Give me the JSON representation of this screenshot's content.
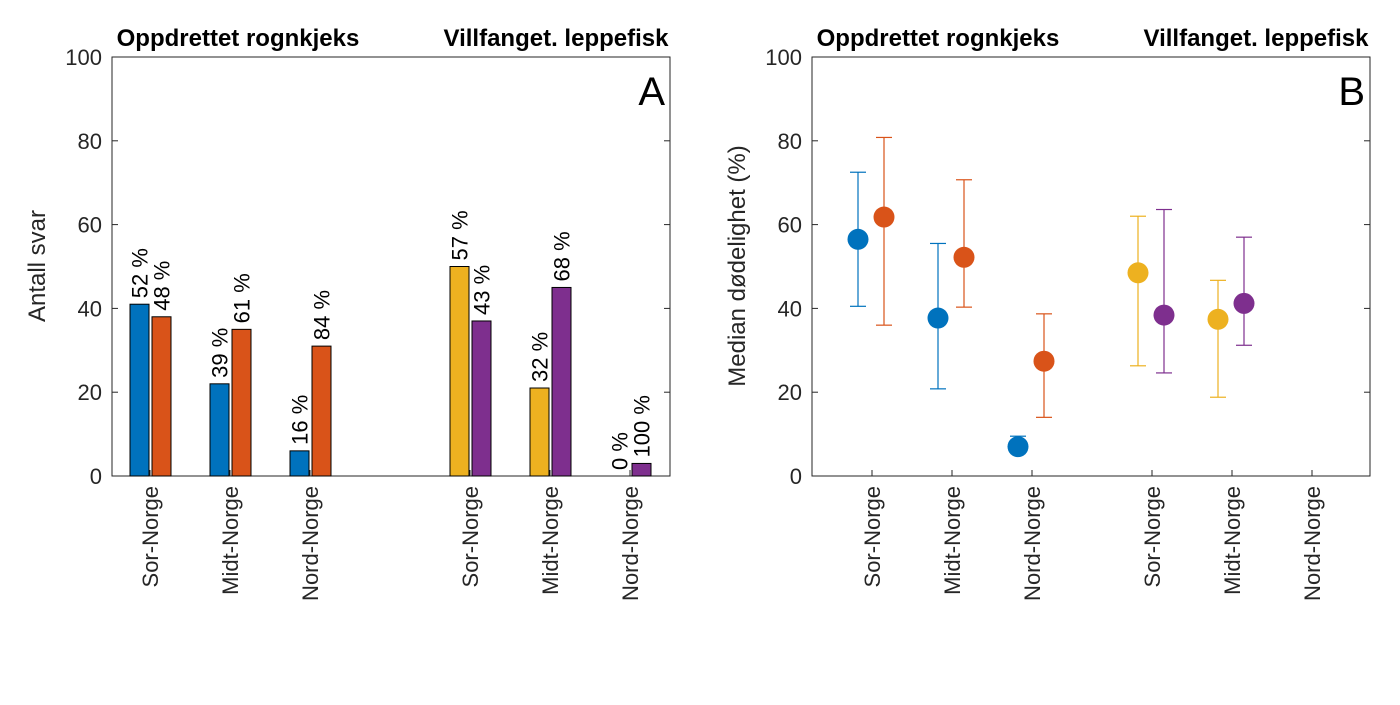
{
  "colors": {
    "blue": "#0072BD",
    "orange": "#D95319",
    "yellow": "#EDB120",
    "purple": "#7E2F8E",
    "axis": "#262626"
  },
  "groups": [
    "Oppdrettet rognkjeks",
    "Villfanget. leppefisk"
  ],
  "categories": [
    "Sor-Norge",
    "Midt-Norge",
    "Nord-Norge",
    "Sor-Norge",
    "Midt-Norge",
    "Nord-Norge"
  ],
  "chart_data": [
    {
      "type": "bar",
      "panel_label": "A",
      "ylabel": "Antall svar",
      "ylim": [
        0,
        100
      ],
      "yticks": [
        0,
        20,
        40,
        60,
        80,
        100
      ],
      "categories": [
        "Sor-Norge",
        "Midt-Norge",
        "Nord-Norge",
        "Sor-Norge",
        "Midt-Norge",
        "Nord-Norge"
      ],
      "bars": [
        {
          "category": 0,
          "color": "blue",
          "value": 41,
          "label": "52 %"
        },
        {
          "category": 0,
          "color": "orange",
          "value": 38,
          "label": "48 %"
        },
        {
          "category": 1,
          "color": "blue",
          "value": 22,
          "label": "39 %"
        },
        {
          "category": 1,
          "color": "orange",
          "value": 35,
          "label": "61 %"
        },
        {
          "category": 2,
          "color": "blue",
          "value": 6,
          "label": "16 %"
        },
        {
          "category": 2,
          "color": "orange",
          "value": 31,
          "label": "84 %"
        },
        {
          "category": 3,
          "color": "yellow",
          "value": 50,
          "label": "57 %"
        },
        {
          "category": 3,
          "color": "purple",
          "value": 37,
          "label": "43 %"
        },
        {
          "category": 4,
          "color": "yellow",
          "value": 21,
          "label": "32 %"
        },
        {
          "category": 4,
          "color": "purple",
          "value": 45,
          "label": "68 %"
        },
        {
          "category": 5,
          "color": "yellow",
          "value": 0,
          "label": "0 %"
        },
        {
          "category": 5,
          "color": "purple",
          "value": 3,
          "label": "100 %"
        }
      ]
    },
    {
      "type": "scatter",
      "panel_label": "B",
      "ylabel": "Median dødelighet (%)",
      "ylim": [
        0,
        100
      ],
      "yticks": [
        0,
        20,
        40,
        60,
        80,
        100
      ],
      "categories": [
        "Sor-Norge",
        "Midt-Norge",
        "Nord-Norge",
        "Sor-Norge",
        "Midt-Norge",
        "Nord-Norge"
      ],
      "points": [
        {
          "category": 0,
          "color": "blue",
          "value": 56.5,
          "low": 40.5,
          "high": 72.5
        },
        {
          "category": 0,
          "color": "orange",
          "value": 61.8,
          "low": 36.0,
          "high": 80.8
        },
        {
          "category": 1,
          "color": "blue",
          "value": 37.7,
          "low": 20.8,
          "high": 55.5
        },
        {
          "category": 1,
          "color": "orange",
          "value": 52.2,
          "low": 40.3,
          "high": 70.7
        },
        {
          "category": 2,
          "color": "blue",
          "value": 7.0,
          "low": 5.5,
          "high": 9.5
        },
        {
          "category": 2,
          "color": "orange",
          "value": 27.4,
          "low": 14.0,
          "high": 38.7
        },
        {
          "category": 3,
          "color": "yellow",
          "value": 48.5,
          "low": 26.3,
          "high": 62.0
        },
        {
          "category": 3,
          "color": "purple",
          "value": 38.4,
          "low": 24.6,
          "high": 63.6
        },
        {
          "category": 4,
          "color": "yellow",
          "value": 37.4,
          "low": 18.8,
          "high": 46.7
        },
        {
          "category": 4,
          "color": "purple",
          "value": 41.2,
          "low": 31.2,
          "high": 57.0
        }
      ]
    }
  ]
}
